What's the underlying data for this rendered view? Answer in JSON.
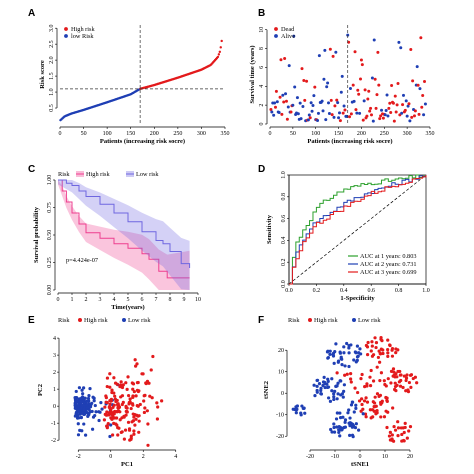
{
  "chart_data": [
    {
      "panel": "A",
      "type": "scatter",
      "xlabel": "Patients (increasing risk socre)",
      "ylabel": "Risk score",
      "xlim": [
        0,
        350
      ],
      "ylim": [
        0,
        3.1
      ],
      "xticks": [
        0,
        50,
        100,
        150,
        200,
        250,
        300,
        350
      ],
      "yticks": [
        0.5,
        1.0,
        1.5,
        2.0,
        2.5,
        3.0
      ],
      "cutoff_x": 170,
      "cutoff_y": 1.1,
      "n": 344,
      "curve": [
        [
          1,
          0.12
        ],
        [
          10,
          0.24
        ],
        [
          25,
          0.33
        ],
        [
          50,
          0.44
        ],
        [
          100,
          0.68
        ],
        [
          150,
          0.93
        ],
        [
          170,
          1.1
        ],
        [
          200,
          1.22
        ],
        [
          250,
          1.45
        ],
        [
          300,
          1.7
        ],
        [
          320,
          1.85
        ],
        [
          335,
          2.1
        ],
        [
          340,
          2.3
        ],
        [
          343,
          2.6
        ],
        [
          344,
          2.9
        ]
      ],
      "legend": [
        {
          "name": "High risk",
          "color": "#e31a1c"
        },
        {
          "name": "low Risk",
          "color": "#1f3fb4"
        }
      ]
    },
    {
      "panel": "B",
      "type": "scatter",
      "xlabel": "Patients (increasing risk socre)",
      "ylabel": "Survival time (years)",
      "xlim": [
        0,
        350
      ],
      "ylim": [
        0,
        10.5
      ],
      "xticks": [
        0,
        50,
        100,
        150,
        200,
        250,
        300,
        350
      ],
      "yticks": [
        0,
        2,
        4,
        6,
        8,
        10
      ],
      "cutoff_x": 170,
      "legend": [
        {
          "name": "Dead",
          "color": "#e31a1c"
        },
        {
          "name": "Alive",
          "color": "#1f3fb4"
        }
      ]
    },
    {
      "panel": "C",
      "type": "line",
      "xlabel": "Time(years)",
      "ylabel": "Survival probability",
      "xlim": [
        0,
        10
      ],
      "ylim": [
        0,
        1
      ],
      "xticks": [
        0,
        1,
        2,
        3,
        4,
        5,
        6,
        7,
        8,
        9,
        10
      ],
      "yticks": [
        0.0,
        0.25,
        0.5,
        0.75,
        1.0
      ],
      "legend_title": "Risk",
      "pvalue": "p=4.424e-07",
      "series": [
        {
          "name": "High risk",
          "color": "#ee3e8f",
          "points": [
            [
              0,
              1
            ],
            [
              0.3,
              0.9
            ],
            [
              0.6,
              0.8
            ],
            [
              1,
              0.7
            ],
            [
              1.5,
              0.6
            ],
            [
              2,
              0.52
            ],
            [
              3,
              0.47
            ],
            [
              4,
              0.42
            ],
            [
              5,
              0.38
            ],
            [
              6,
              0.33
            ],
            [
              6.5,
              0.28
            ],
            [
              7.2,
              0.17
            ],
            [
              7.8,
              0.11
            ],
            [
              9,
              0.11
            ],
            [
              9.4,
              0.11
            ]
          ]
        },
        {
          "name": "Low risk",
          "color": "#6f67e0",
          "points": [
            [
              0,
              1
            ],
            [
              0.6,
              0.97
            ],
            [
              1,
              0.95
            ],
            [
              1.5,
              0.9
            ],
            [
              2,
              0.85
            ],
            [
              3,
              0.78
            ],
            [
              4,
              0.7
            ],
            [
              5,
              0.62
            ],
            [
              6,
              0.53
            ],
            [
              7,
              0.45
            ],
            [
              7.5,
              0.42
            ],
            [
              8,
              0.35
            ],
            [
              8.8,
              0.24
            ],
            [
              9.4,
              0.2
            ]
          ]
        }
      ]
    },
    {
      "panel": "D",
      "type": "line",
      "xlabel": "1-Specificity",
      "ylabel": "Sensitivity",
      "xlim": [
        0,
        1
      ],
      "ylim": [
        0,
        1
      ],
      "xticks": [
        0.0,
        0.2,
        0.4,
        0.6,
        0.8,
        1.0
      ],
      "yticks": [
        0.0,
        0.2,
        0.4,
        0.6,
        0.8,
        1.0
      ],
      "series": [
        {
          "name": "AUC at 1 years: 0.803",
          "color": "#2ca02c",
          "points": [
            [
              0,
              0
            ],
            [
              0.02,
              0.22
            ],
            [
              0.05,
              0.38
            ],
            [
              0.1,
              0.5
            ],
            [
              0.15,
              0.6
            ],
            [
              0.2,
              0.7
            ],
            [
              0.3,
              0.8
            ],
            [
              0.4,
              0.87
            ],
            [
              0.5,
              0.9
            ],
            [
              0.6,
              0.93
            ],
            [
              0.8,
              0.96
            ],
            [
              1,
              1
            ]
          ]
        },
        {
          "name": "AUC at 2 years: 0.731",
          "color": "#1f3fb4",
          "points": [
            [
              0,
              0
            ],
            [
              0.02,
              0.15
            ],
            [
              0.05,
              0.28
            ],
            [
              0.1,
              0.42
            ],
            [
              0.15,
              0.52
            ],
            [
              0.2,
              0.58
            ],
            [
              0.3,
              0.66
            ],
            [
              0.4,
              0.74
            ],
            [
              0.5,
              0.8
            ],
            [
              0.6,
              0.85
            ],
            [
              0.8,
              0.93
            ],
            [
              1,
              1
            ]
          ]
        },
        {
          "name": "AUC at 3 years: 0.699",
          "color": "#e31a1c",
          "points": [
            [
              0,
              0
            ],
            [
              0.02,
              0.12
            ],
            [
              0.05,
              0.25
            ],
            [
              0.1,
              0.38
            ],
            [
              0.15,
              0.48
            ],
            [
              0.2,
              0.55
            ],
            [
              0.3,
              0.63
            ],
            [
              0.4,
              0.7
            ],
            [
              0.5,
              0.77
            ],
            [
              0.6,
              0.83
            ],
            [
              0.8,
              0.92
            ],
            [
              1,
              1
            ]
          ]
        }
      ]
    },
    {
      "panel": "E",
      "type": "scatter",
      "xlabel": "PC1",
      "ylabel": "PC2",
      "xlim": [
        -3,
        5
      ],
      "ylim": [
        -2.4,
        4.3
      ],
      "xticks": [
        -2,
        0,
        2,
        4
      ],
      "yticks": [
        -2,
        -1,
        0,
        1,
        2,
        3,
        4
      ],
      "legend_title": "Risk",
      "legend": [
        {
          "name": "High risk",
          "color": "#e31a1c"
        },
        {
          "name": "Low risk",
          "color": "#1f3fb4"
        }
      ]
    },
    {
      "panel": "F",
      "type": "scatter",
      "xlabel": "tSNE1",
      "ylabel": "tSNE2",
      "xlim": [
        -28,
        28
      ],
      "ylim": [
        -25,
        28
      ],
      "xticks": [
        -20,
        -10,
        0,
        10,
        20
      ],
      "yticks": [
        -20,
        -10,
        0,
        10,
        20
      ],
      "legend_title": "Risk",
      "legend": [
        {
          "name": "High risk",
          "color": "#e31a1c"
        },
        {
          "name": "Low risk",
          "color": "#1f3fb4"
        }
      ]
    }
  ]
}
